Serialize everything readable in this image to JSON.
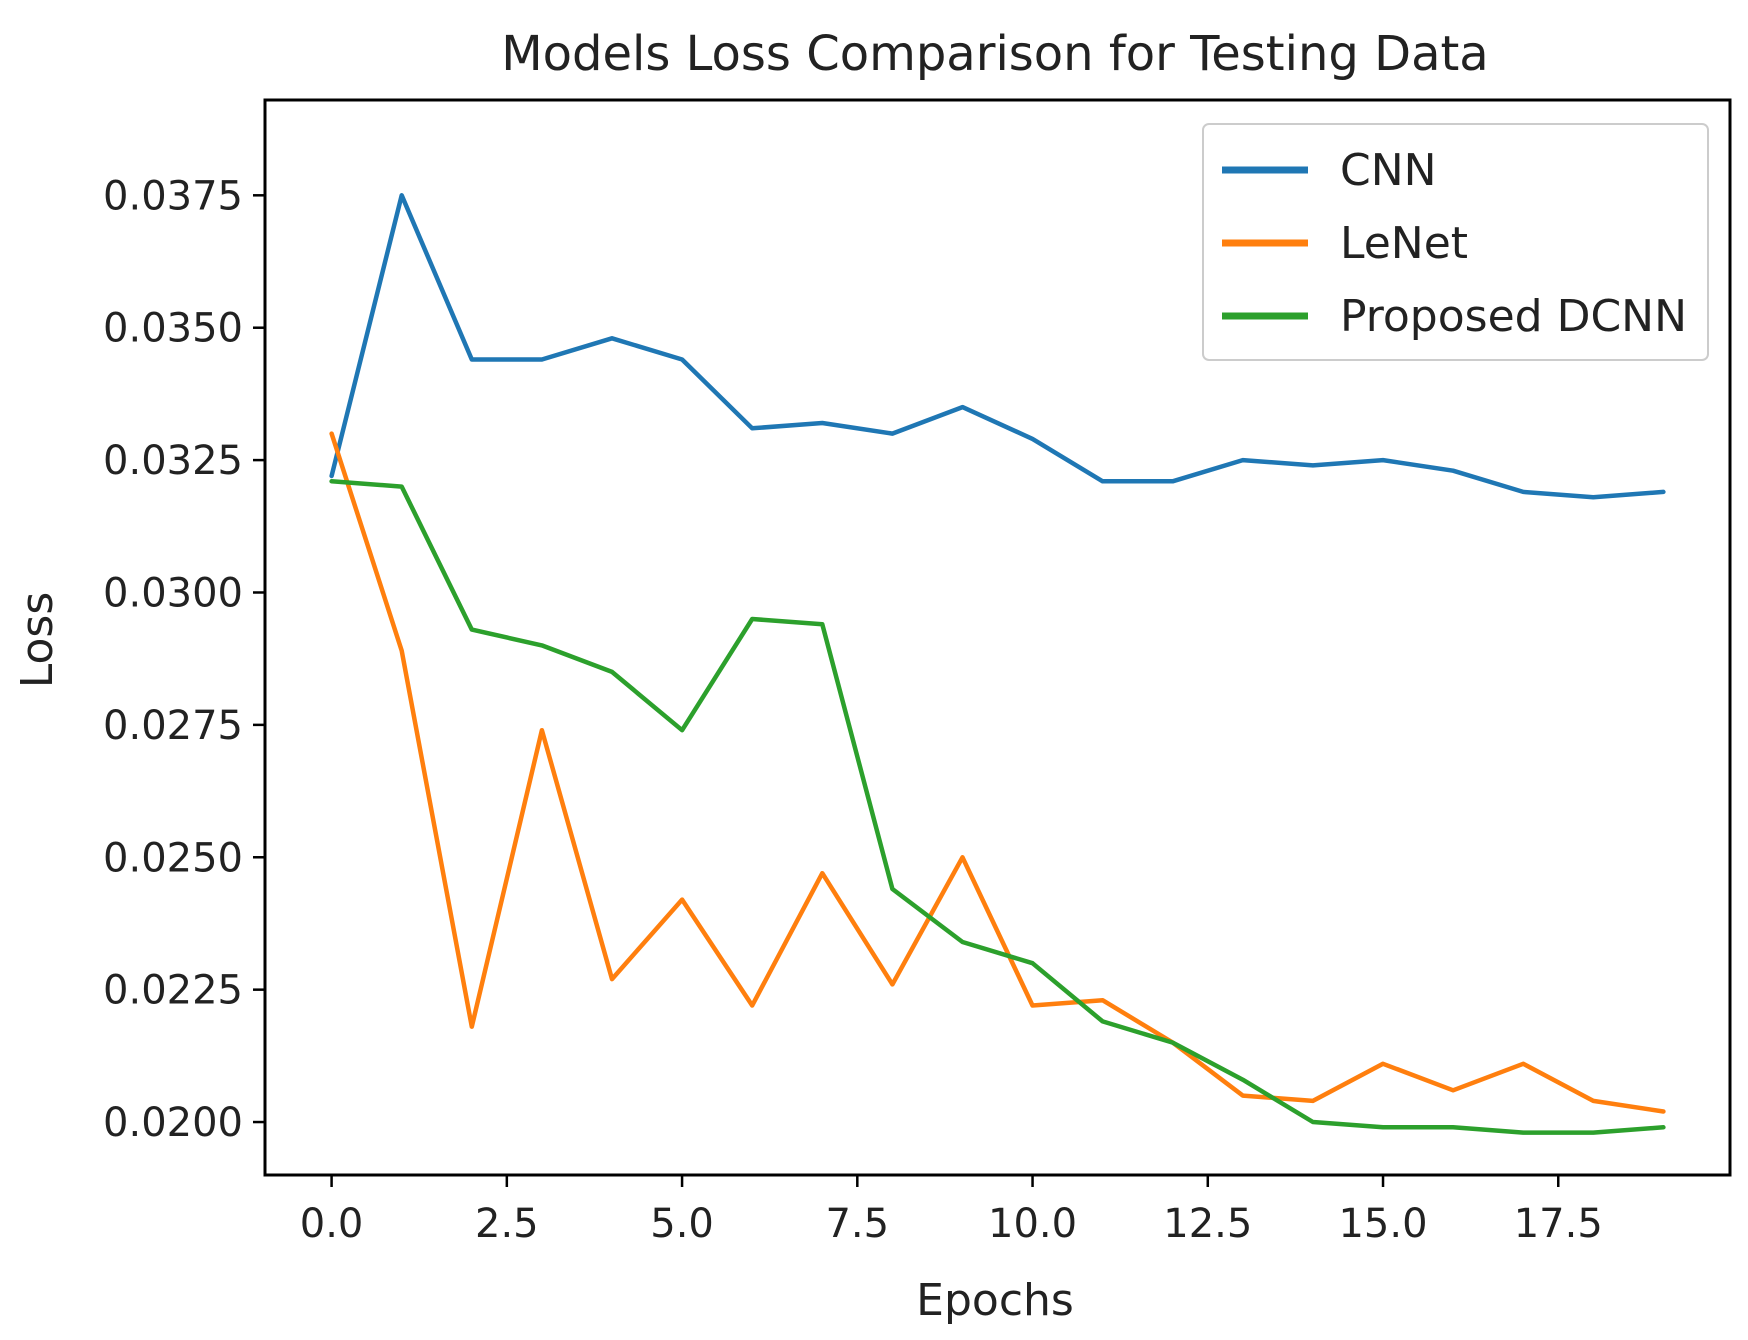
{
  "chart_data": {
    "type": "line",
    "title": "Models Loss Comparison for Testing Data",
    "xlabel": "Epochs",
    "ylabel": "Loss",
    "xlim": [
      -0.95,
      19.95
    ],
    "ylim": [
      0.019,
      0.0393
    ],
    "xticks": [
      0.0,
      2.5,
      5.0,
      7.5,
      10.0,
      12.5,
      15.0,
      17.5
    ],
    "xtick_labels": [
      "0.0",
      "2.5",
      "5.0",
      "7.5",
      "10.0",
      "12.5",
      "15.0",
      "17.5"
    ],
    "yticks": [
      0.02,
      0.0225,
      0.025,
      0.0275,
      0.03,
      0.0325,
      0.035,
      0.0375
    ],
    "ytick_labels": [
      "0.0200",
      "0.0225",
      "0.0250",
      "0.0275",
      "0.0300",
      "0.0325",
      "0.0350",
      "0.0375"
    ],
    "grid": false,
    "legend_position": "top-right",
    "x": [
      0,
      1,
      2,
      3,
      4,
      5,
      6,
      7,
      8,
      9,
      10,
      11,
      12,
      13,
      14,
      15,
      16,
      17,
      18,
      19
    ],
    "series": [
      {
        "name": "CNN",
        "color": "#1f77b4",
        "values": [
          0.0322,
          0.0375,
          0.0344,
          0.0344,
          0.0348,
          0.0344,
          0.0331,
          0.0332,
          0.033,
          0.0335,
          0.0329,
          0.0321,
          0.0321,
          0.0325,
          0.0324,
          0.0325,
          0.0323,
          0.0319,
          0.0318,
          0.0319
        ]
      },
      {
        "name": "LeNet",
        "color": "#ff7f0e",
        "values": [
          0.033,
          0.0289,
          0.0218,
          0.0274,
          0.0227,
          0.0242,
          0.0222,
          0.0247,
          0.0226,
          0.025,
          0.0222,
          0.0223,
          0.0215,
          0.0205,
          0.0204,
          0.0211,
          0.0206,
          0.0211,
          0.0204,
          0.0202
        ]
      },
      {
        "name": "Proposed DCNN",
        "color": "#2ca02c",
        "values": [
          0.0321,
          0.032,
          0.0293,
          0.029,
          0.0285,
          0.0274,
          0.0295,
          0.0294,
          0.0244,
          0.0234,
          0.023,
          0.0219,
          0.0215,
          0.0208,
          0.02,
          0.0199,
          0.0199,
          0.0198,
          0.0198,
          0.0199
        ]
      }
    ]
  }
}
